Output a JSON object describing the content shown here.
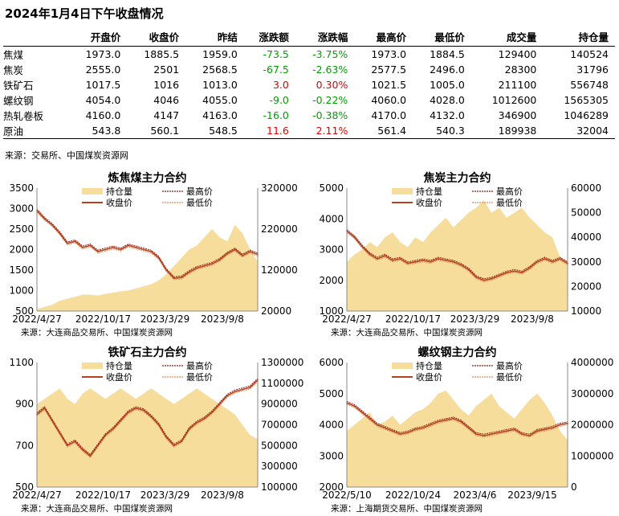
{
  "title": "2024年1月4日下午收盘情况",
  "table": {
    "headers": [
      "",
      "开盘价",
      "收盘价",
      "昨结",
      "涨跌额",
      "涨跌幅",
      "最高价",
      "最低价",
      "成交量",
      "持仓量"
    ],
    "rows": [
      {
        "name": "焦煤",
        "open": "1973.0",
        "close": "1885.5",
        "prev": "1959.0",
        "chg": "-73.5",
        "pct": "-3.75%",
        "high": "1973.0",
        "low": "1884.5",
        "vol": "129400",
        "oi": "140524",
        "dir": "neg"
      },
      {
        "name": "焦炭",
        "open": "2555.0",
        "close": "2501",
        "prev": "2568.5",
        "chg": "-67.5",
        "pct": "-2.63%",
        "high": "2577.5",
        "low": "2496.0",
        "vol": "28300",
        "oi": "31796",
        "dir": "neg"
      },
      {
        "name": "铁矿石",
        "open": "1017.5",
        "close": "1016",
        "prev": "1013.0",
        "chg": "3.0",
        "pct": "0.30%",
        "high": "1021.5",
        "low": "1005.0",
        "vol": "211100",
        "oi": "556748",
        "dir": "pos"
      },
      {
        "name": "螺纹钢",
        "open": "4054.0",
        "close": "4046",
        "prev": "4055.0",
        "chg": "-9.0",
        "pct": "-0.22%",
        "high": "4060.0",
        "low": "4028.0",
        "vol": "1012600",
        "oi": "1565305",
        "dir": "neg"
      },
      {
        "name": "热轧卷板",
        "open": "4160.0",
        "close": "4147",
        "prev": "4163.0",
        "chg": "-16.0",
        "pct": "-0.38%",
        "high": "4170.0",
        "low": "4132.0",
        "vol": "346900",
        "oi": "1046289",
        "dir": "neg"
      },
      {
        "name": "原油",
        "open": "543.8",
        "close": "560.1",
        "prev": "548.5",
        "chg": "11.6",
        "pct": "2.11%",
        "high": "561.4",
        "low": "540.3",
        "vol": "189938",
        "oi": "32004",
        "dir": "pos"
      }
    ],
    "source": "来源：交易所、中国煤炭资源网"
  },
  "colors": {
    "oi_fill": "#f7dd9c",
    "close": "#b5421e",
    "high": "#8b1a10",
    "low": "#e08a5a",
    "neg": "#00a000",
    "pos": "#e00000"
  },
  "chart_data": [
    {
      "type": "line",
      "title": "炼焦煤主力合约",
      "source": "来源：大连商品交易所、中国煤炭资源网",
      "xticks": [
        "2022/4/27",
        "2022/10/17",
        "2023/3/29",
        "2023/9/8"
      ],
      "y_left": {
        "ticks": [
          "3500",
          "3000",
          "2500",
          "2000",
          "1500",
          "1000",
          "500"
        ],
        "range": [
          500,
          3500
        ]
      },
      "y_right": {
        "ticks": [
          "320000",
          "220000",
          "120000",
          "20000"
        ],
        "range": [
          20000,
          320000
        ]
      },
      "legend": [
        "持仓量",
        "最高价",
        "收盘价",
        "最低价"
      ],
      "series": [
        {
          "name": "收盘价",
          "values": [
            2950,
            2750,
            2600,
            2400,
            2150,
            2200,
            2050,
            2100,
            1950,
            2000,
            2050,
            2000,
            2100,
            2050,
            2000,
            1950,
            1800,
            1500,
            1300,
            1320,
            1450,
            1550,
            1600,
            1650,
            1750,
            1900,
            2000,
            1850,
            1950,
            1880
          ]
        },
        {
          "name": "持仓量",
          "values": [
            25000,
            30000,
            35000,
            45000,
            50000,
            55000,
            60000,
            60000,
            58000,
            62000,
            65000,
            68000,
            70000,
            75000,
            80000,
            85000,
            95000,
            110000,
            130000,
            150000,
            170000,
            180000,
            200000,
            220000,
            200000,
            190000,
            230000,
            210000,
            170000,
            140000
          ]
        }
      ]
    },
    {
      "type": "line",
      "title": "焦炭主力合约",
      "source": "来源：大连商品交易所、中国煤炭资源网",
      "xticks": [
        "2022/4/27",
        "2022/10/17",
        "2023/3/29",
        "2023/9/8"
      ],
      "y_left": {
        "ticks": [
          "5000",
          "4000",
          "3000",
          "2000",
          "1000"
        ],
        "range": [
          1000,
          5000
        ]
      },
      "y_right": {
        "ticks": [
          "60000",
          "50000",
          "40000",
          "30000",
          "20000",
          "10000"
        ],
        "range": [
          10000,
          60000
        ]
      },
      "legend": [
        "持仓量",
        "最高价",
        "收盘价",
        "最低价"
      ],
      "series": [
        {
          "name": "收盘价",
          "values": [
            3600,
            3400,
            3100,
            2850,
            2700,
            2800,
            2650,
            2700,
            2550,
            2600,
            2650,
            2600,
            2700,
            2650,
            2600,
            2500,
            2350,
            2100,
            2000,
            2050,
            2150,
            2250,
            2300,
            2250,
            2400,
            2600,
            2700,
            2600,
            2700,
            2550
          ]
        },
        {
          "name": "持仓量",
          "values": [
            30000,
            33000,
            35000,
            38000,
            36000,
            40000,
            42000,
            38000,
            36000,
            40000,
            38000,
            42000,
            45000,
            48000,
            44000,
            47000,
            50000,
            52000,
            55000,
            50000,
            52000,
            48000,
            50000,
            52000,
            48000,
            45000,
            42000,
            40000,
            32000,
            30000
          ]
        }
      ]
    },
    {
      "type": "line",
      "title": "铁矿石主力合约",
      "source": "来源：大连商品交易所、中国煤炭资源网",
      "xticks": [
        "2022/4/27",
        "2022/10/17",
        "2023/3/29",
        "2023/9/8"
      ],
      "y_left": {
        "ticks": [
          "1100",
          "900",
          "700",
          "500"
        ],
        "range": [
          500,
          1100
        ]
      },
      "y_right": {
        "ticks": [
          "1300000",
          "1100000",
          "900000",
          "700000",
          "500000",
          "300000",
          "100000"
        ],
        "range": [
          100000,
          1300000
        ]
      },
      "legend": [
        "持仓量",
        "最高价",
        "收盘价",
        "最低价"
      ],
      "series": [
        {
          "name": "收盘价",
          "values": [
            850,
            880,
            820,
            760,
            700,
            720,
            680,
            650,
            700,
            750,
            780,
            820,
            860,
            880,
            870,
            840,
            800,
            740,
            700,
            720,
            780,
            810,
            830,
            860,
            900,
            940,
            960,
            970,
            980,
            1016
          ]
        },
        {
          "name": "持仓量",
          "values": [
            900000,
            950000,
            1000000,
            1050000,
            950000,
            900000,
            1000000,
            1050000,
            1000000,
            950000,
            1000000,
            1050000,
            1000000,
            950000,
            1000000,
            1050000,
            1000000,
            950000,
            900000,
            950000,
            1000000,
            1050000,
            1000000,
            950000,
            900000,
            850000,
            800000,
            700000,
            600000,
            560000
          ]
        }
      ]
    },
    {
      "type": "line",
      "title": "螺纹钢主力合约",
      "source": "来源：上海期货交易所、中国煤炭资源网",
      "xticks": [
        "2022/5/10",
        "2022/10/24",
        "2023/4/6",
        "2023/9/15"
      ],
      "y_left": {
        "ticks": [
          "6000",
          "5000",
          "4000",
          "3000",
          "2000"
        ],
        "range": [
          2000,
          6000
        ]
      },
      "y_right": {
        "ticks": [
          "4000000",
          "3000000",
          "2000000",
          "1000000",
          "0"
        ],
        "range": [
          0,
          4000000
        ]
      },
      "legend": [
        "持仓量",
        "最高价",
        "收盘价",
        "最低价"
      ],
      "series": [
        {
          "name": "收盘价",
          "values": [
            4700,
            4600,
            4400,
            4200,
            4000,
            3900,
            3800,
            3700,
            3750,
            3850,
            3900,
            4000,
            4100,
            4150,
            4200,
            4100,
            3900,
            3700,
            3650,
            3700,
            3750,
            3800,
            3850,
            3700,
            3650,
            3800,
            3850,
            3900,
            4000,
            4046
          ]
        },
        {
          "name": "持仓量",
          "values": [
            1800000,
            2000000,
            2200000,
            2400000,
            2000000,
            2100000,
            2300000,
            2000000,
            2200000,
            2400000,
            2500000,
            2700000,
            3000000,
            3100000,
            2800000,
            2500000,
            2300000,
            2600000,
            2800000,
            3000000,
            2600000,
            2400000,
            2200000,
            2500000,
            2800000,
            3000000,
            2700000,
            2300000,
            1800000,
            1500000
          ]
        }
      ]
    }
  ]
}
